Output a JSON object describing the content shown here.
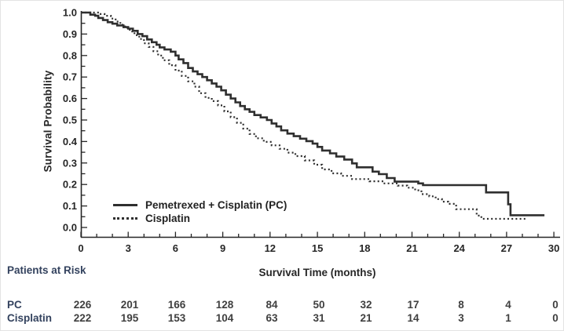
{
  "figure": {
    "y_axis_title": "Survival Probability",
    "x_axis_title": "Survival Time (months)",
    "legend": [
      {
        "label": "Pemetrexed + Cisplatin (PC)",
        "style": "solid"
      },
      {
        "label": "Cisplatin",
        "style": "dotted"
      }
    ],
    "axis": {
      "y_tick_labels": [
        "0.0",
        "0.1",
        "0.2",
        "0.3",
        "0.4",
        "0.5",
        "0.6",
        "0.7",
        "0.8",
        "0.9",
        "1.0"
      ],
      "x_tick_labels": [
        "0",
        "3",
        "6",
        "9",
        "12",
        "15",
        "18",
        "21",
        "24",
        "27",
        "30"
      ]
    },
    "risk_table": {
      "title": "Patients at Risk",
      "timepoints": [
        0,
        3,
        6,
        9,
        12,
        15,
        18,
        21,
        24,
        27,
        30
      ],
      "rows": [
        {
          "label": "PC",
          "counts": [
            226,
            201,
            166,
            128,
            84,
            50,
            32,
            17,
            8,
            4,
            0
          ]
        },
        {
          "label": "Cisplatin",
          "counts": [
            222,
            195,
            153,
            104,
            63,
            31,
            21,
            14,
            3,
            1,
            0
          ]
        }
      ]
    },
    "colors": {
      "curve": "#2f2f2f",
      "axis_text": "#262626",
      "table_label": "#33425e",
      "table_value": "#3f3f3f"
    }
  },
  "chart_data": {
    "type": "line",
    "subtype": "kaplan-meier-step",
    "title": "",
    "xlabel": "Survival Time (months)",
    "ylabel": "Survival Probability",
    "xlim": [
      0,
      30
    ],
    "ylim": [
      0.0,
      1.0
    ],
    "x_ticks": [
      0,
      3,
      6,
      9,
      12,
      15,
      18,
      21,
      24,
      27,
      30
    ],
    "y_ticks": [
      0.0,
      0.1,
      0.2,
      0.3,
      0.4,
      0.5,
      0.6,
      0.7,
      0.8,
      0.9,
      1.0
    ],
    "x_minor_step": 1,
    "y_minor_step": 0.05,
    "grid": false,
    "legend_position": "lower-left-inside",
    "series": [
      {
        "name": "Pemetrexed + Cisplatin (PC)",
        "style": "solid",
        "points": [
          [
            0,
            1.0
          ],
          [
            0.6,
            0.99
          ],
          [
            0.9,
            0.985
          ],
          [
            1.1,
            0.975
          ],
          [
            1.4,
            0.965
          ],
          [
            1.7,
            0.955
          ],
          [
            2.0,
            0.948
          ],
          [
            2.3,
            0.94
          ],
          [
            2.7,
            0.932
          ],
          [
            3.0,
            0.925
          ],
          [
            3.3,
            0.915
          ],
          [
            3.6,
            0.9
          ],
          [
            3.9,
            0.89
          ],
          [
            4.2,
            0.875
          ],
          [
            4.5,
            0.862
          ],
          [
            4.8,
            0.85
          ],
          [
            5.0,
            0.838
          ],
          [
            5.3,
            0.828
          ],
          [
            5.7,
            0.818
          ],
          [
            6.0,
            0.8
          ],
          [
            6.2,
            0.782
          ],
          [
            6.5,
            0.765
          ],
          [
            6.8,
            0.742
          ],
          [
            7.1,
            0.726
          ],
          [
            7.4,
            0.713
          ],
          [
            7.7,
            0.7
          ],
          [
            8.0,
            0.685
          ],
          [
            8.3,
            0.67
          ],
          [
            8.6,
            0.655
          ],
          [
            8.9,
            0.638
          ],
          [
            9.2,
            0.618
          ],
          [
            9.5,
            0.6
          ],
          [
            9.8,
            0.582
          ],
          [
            10.1,
            0.565
          ],
          [
            10.4,
            0.55
          ],
          [
            10.7,
            0.538
          ],
          [
            11.0,
            0.523
          ],
          [
            11.4,
            0.512
          ],
          [
            11.8,
            0.5
          ],
          [
            12.1,
            0.484
          ],
          [
            12.4,
            0.47
          ],
          [
            12.7,
            0.452
          ],
          [
            13.1,
            0.437
          ],
          [
            13.5,
            0.425
          ],
          [
            13.9,
            0.413
          ],
          [
            14.3,
            0.402
          ],
          [
            14.7,
            0.39
          ],
          [
            15.0,
            0.375
          ],
          [
            15.3,
            0.358
          ],
          [
            15.8,
            0.345
          ],
          [
            16.2,
            0.33
          ],
          [
            16.7,
            0.316
          ],
          [
            17.2,
            0.298
          ],
          [
            17.5,
            0.28
          ],
          [
            18.5,
            0.26
          ],
          [
            18.9,
            0.248
          ],
          [
            19.4,
            0.23
          ],
          [
            19.9,
            0.213
          ],
          [
            21.4,
            0.205
          ],
          [
            21.7,
            0.197
          ],
          [
            25.7,
            0.163
          ],
          [
            27.1,
            0.108
          ],
          [
            27.25,
            0.057
          ],
          [
            29.4,
            0.057
          ]
        ]
      },
      {
        "name": "Cisplatin",
        "style": "dotted",
        "points": [
          [
            0,
            1.0
          ],
          [
            1.2,
            0.993
          ],
          [
            1.5,
            0.985
          ],
          [
            1.9,
            0.972
          ],
          [
            2.2,
            0.958
          ],
          [
            2.5,
            0.943
          ],
          [
            2.8,
            0.928
          ],
          [
            3.1,
            0.912
          ],
          [
            3.4,
            0.895
          ],
          [
            3.7,
            0.877
          ],
          [
            4.0,
            0.857
          ],
          [
            4.3,
            0.84
          ],
          [
            4.6,
            0.82
          ],
          [
            4.9,
            0.8
          ],
          [
            5.2,
            0.778
          ],
          [
            5.6,
            0.755
          ],
          [
            6.0,
            0.73
          ],
          [
            6.4,
            0.705
          ],
          [
            6.8,
            0.68
          ],
          [
            7.2,
            0.655
          ],
          [
            7.5,
            0.625
          ],
          [
            7.9,
            0.603
          ],
          [
            8.3,
            0.588
          ],
          [
            8.7,
            0.568
          ],
          [
            9.1,
            0.54
          ],
          [
            9.5,
            0.513
          ],
          [
            9.9,
            0.487
          ],
          [
            10.3,
            0.46
          ],
          [
            10.7,
            0.435
          ],
          [
            11.1,
            0.415
          ],
          [
            11.6,
            0.398
          ],
          [
            12.1,
            0.382
          ],
          [
            12.6,
            0.366
          ],
          [
            13.1,
            0.348
          ],
          [
            13.6,
            0.332
          ],
          [
            14.2,
            0.312
          ],
          [
            14.8,
            0.292
          ],
          [
            15.3,
            0.27
          ],
          [
            15.9,
            0.252
          ],
          [
            16.5,
            0.24
          ],
          [
            17.2,
            0.225
          ],
          [
            18.3,
            0.215
          ],
          [
            19.2,
            0.205
          ],
          [
            20.1,
            0.195
          ],
          [
            20.7,
            0.185
          ],
          [
            21.2,
            0.173
          ],
          [
            21.6,
            0.155
          ],
          [
            22.1,
            0.145
          ],
          [
            22.5,
            0.132
          ],
          [
            22.9,
            0.12
          ],
          [
            23.3,
            0.11
          ],
          [
            23.8,
            0.085
          ],
          [
            25.1,
            0.055
          ],
          [
            25.4,
            0.04
          ],
          [
            28.2,
            0.04
          ]
        ]
      }
    ]
  }
}
